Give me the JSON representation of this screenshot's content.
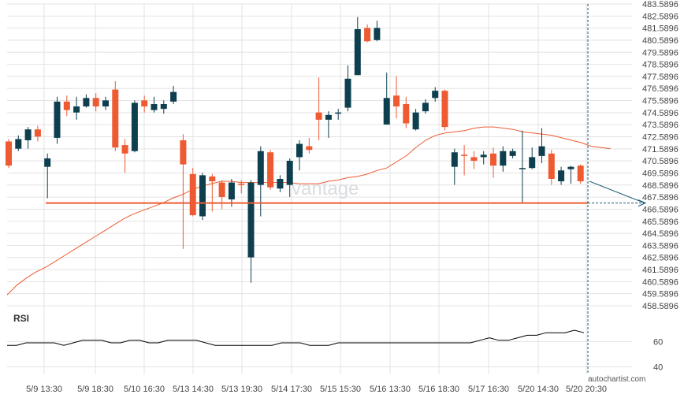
{
  "chart_data": {
    "type": "candlestick",
    "watermark": "vantage",
    "credit": "autochartist.com",
    "colors": {
      "up": "#0e3f4f",
      "down": "#ee5a31",
      "ma": "#ee5a31",
      "support": "#ee5a31",
      "rsi": "#000000",
      "grid": "#e3e3e3",
      "forecast": "#1d5870"
    },
    "y_axis": {
      "ticks": [
        "483.5896",
        "482.5896",
        "481.5896",
        "480.5896",
        "479.5896",
        "478.5896",
        "477.5896",
        "476.5896",
        "475.5896",
        "474.5896",
        "473.5896",
        "472.5896",
        "471.5896",
        "470.5896",
        "469.5896",
        "468.5896",
        "467.5896",
        "466.5896",
        "465.5896",
        "464.5896",
        "463.5896",
        "462.5896",
        "461.5896",
        "460.5896",
        "459.5896",
        "458.5896"
      ],
      "range": [
        458.0,
        483.9
      ]
    },
    "x_axis": {
      "labels": [
        "5/9 13:30",
        "5/9 18:30",
        "5/10 16:30",
        "5/13 14:30",
        "5/13 19:30",
        "5/14 17:30",
        "5/15 15:30",
        "5/16 13:30",
        "5/16 18:30",
        "5/17 16:30",
        "5/20 14:30",
        "5/20 20:30"
      ]
    },
    "support_level": 467.1,
    "forecast_target": 467.1,
    "rsi": {
      "label": "RSI",
      "ticks": [
        "60",
        "40"
      ],
      "range": [
        34,
        84
      ],
      "values": [
        57,
        57,
        59,
        59,
        59,
        59,
        57,
        59,
        61,
        61,
        61,
        59,
        59,
        61,
        61,
        59,
        59,
        61,
        61,
        61,
        61,
        59,
        57,
        57,
        57,
        57,
        57,
        57,
        57,
        59,
        59,
        59,
        57,
        57,
        57,
        59,
        59,
        59,
        59,
        59,
        59,
        59,
        59,
        59,
        59,
        59,
        59,
        59,
        59,
        59,
        61,
        63,
        61,
        61,
        63,
        65,
        65,
        67,
        67,
        67,
        69,
        67
      ]
    },
    "candles": [
      [
        472.2,
        470.2,
        472.4,
        470.0
      ],
      [
        471.6,
        472.4,
        472.7,
        471.4
      ],
      [
        472.3,
        473.2,
        473.4,
        471.6
      ],
      [
        473.2,
        472.6,
        473.5,
        472.2
      ],
      [
        470.1,
        470.8,
        471.2,
        467.5
      ],
      [
        472.5,
        475.5,
        475.9,
        472.0
      ],
      [
        475.5,
        474.8,
        476.0,
        474.3
      ],
      [
        474.6,
        475.1,
        475.9,
        474.0
      ],
      [
        475.1,
        475.8,
        476.1,
        475.0
      ],
      [
        475.8,
        475.1,
        476.2,
        474.7
      ],
      [
        475.1,
        475.6,
        475.9,
        474.8
      ],
      [
        476.5,
        471.7,
        477.2,
        471.4
      ],
      [
        471.9,
        471.2,
        472.4,
        469.6
      ],
      [
        471.4,
        475.4,
        475.6,
        471.3
      ],
      [
        475.6,
        475.1,
        476.0,
        474.6
      ],
      [
        474.8,
        475.3,
        475.9,
        474.6
      ],
      [
        474.9,
        475.3,
        475.6,
        474.5
      ],
      [
        475.5,
        476.3,
        476.8,
        475.3
      ],
      [
        472.3,
        470.3,
        472.8,
        463.3
      ],
      [
        469.5,
        466.1,
        470.0,
        466.0
      ],
      [
        466.0,
        469.4,
        469.6,
        465.7
      ],
      [
        469.3,
        468.9,
        469.5,
        466.4
      ],
      [
        468.8,
        467.6,
        469.0,
        466.6
      ],
      [
        467.4,
        468.8,
        469.1,
        466.8
      ],
      [
        468.7,
        468.6,
        469.0,
        467.9
      ],
      [
        462.6,
        468.8,
        469.0,
        460.5
      ],
      [
        468.6,
        471.4,
        471.8,
        466.0
      ],
      [
        471.3,
        468.4,
        471.5,
        468.2
      ],
      [
        468.3,
        469.1,
        469.4,
        468.0
      ],
      [
        468.6,
        470.6,
        470.8,
        467.6
      ],
      [
        470.9,
        472.0,
        472.3,
        469.8
      ],
      [
        471.8,
        471.5,
        472.5,
        471.2
      ],
      [
        474.6,
        474.0,
        477.5,
        472.3
      ],
      [
        474.0,
        474.4,
        474.7,
        472.5
      ],
      [
        474.5,
        474.6,
        474.9,
        474.0
      ],
      [
        475.0,
        477.4,
        478.5,
        474.7
      ],
      [
        477.7,
        481.5,
        482.5,
        477.7
      ],
      [
        481.6,
        480.5,
        481.9,
        480.4
      ],
      [
        480.6,
        481.6,
        482.2,
        480.5
      ],
      [
        473.6,
        475.8,
        477.9,
        473.6
      ],
      [
        476.0,
        475.1,
        477.6,
        474.1
      ],
      [
        475.3,
        473.7,
        475.9,
        473.3
      ],
      [
        473.2,
        474.6,
        474.9,
        473.1
      ],
      [
        474.7,
        475.4,
        475.7,
        474.5
      ],
      [
        475.8,
        476.4,
        476.7,
        475.5
      ],
      [
        476.4,
        473.4,
        476.5,
        473.1
      ],
      [
        470.1,
        471.3,
        471.6,
        468.6
      ],
      [
        471.1,
        471.0,
        471.9,
        469.4
      ],
      [
        470.9,
        470.6,
        471.4,
        469.9
      ],
      [
        470.9,
        471.1,
        471.4,
        470.3
      ],
      [
        471.2,
        470.2,
        471.7,
        469.2
      ],
      [
        470.2,
        471.4,
        471.8,
        469.7
      ],
      [
        471.0,
        471.4,
        471.6,
        470.8
      ],
      [
        470.0,
        470.0,
        473.1,
        467.1
      ],
      [
        470.0,
        470.9,
        471.7,
        469.9
      ],
      [
        471.0,
        471.8,
        473.3,
        470.4
      ],
      [
        471.2,
        469.1,
        471.5,
        468.6
      ],
      [
        468.9,
        469.8,
        470.1,
        468.6
      ],
      [
        469.9,
        470.1,
        470.2,
        468.7
      ],
      [
        470.2,
        468.9,
        470.3,
        468.7
      ]
    ],
    "ma": [
      459.5,
      460.3,
      460.9,
      461.4,
      461.8,
      462.3,
      462.8,
      463.3,
      463.8,
      464.3,
      464.8,
      465.3,
      465.8,
      466.2,
      466.5,
      466.8,
      467.1,
      467.5,
      467.8,
      468.2,
      468.5,
      468.7,
      468.9,
      468.9,
      468.8,
      468.8,
      468.8,
      468.8,
      468.8,
      468.8,
      468.7,
      468.7,
      468.7,
      468.9,
      469.0,
      469.2,
      469.3,
      469.5,
      469.8,
      470.0,
      470.5,
      471.0,
      471.7,
      472.3,
      472.7,
      472.9,
      473.0,
      473.1,
      473.3,
      473.4,
      473.4,
      473.3,
      473.2,
      473.0,
      472.9,
      472.8,
      472.7,
      472.5,
      472.3,
      472.1,
      471.8,
      471.7,
      471.6
    ]
  }
}
